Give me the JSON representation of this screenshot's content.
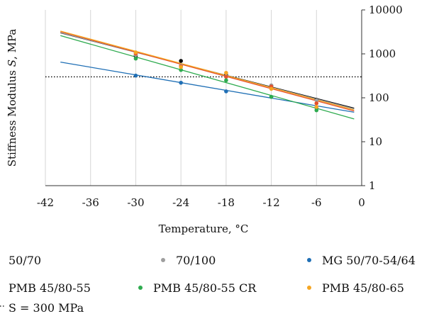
{
  "chart_data": {
    "type": "scatter",
    "y_scale": "log",
    "xlabel": "Temperature, °C",
    "ylabel_main": "Stiffness Modulus ",
    "ylabel_symbol": "S",
    "ylabel_unit": ", MPa",
    "xlim": [
      -42,
      0
    ],
    "ylim": [
      1,
      10000
    ],
    "x_ticks": [
      "-42",
      "-36",
      "-30",
      "-24",
      "-18",
      "-12",
      "-6",
      "0"
    ],
    "x_tick_values": [
      -42,
      -36,
      -30,
      -24,
      -18,
      -12,
      -6,
      0
    ],
    "y_ticks": [
      "1",
      "10",
      "100",
      "1000",
      "10000"
    ],
    "y_tick_values": [
      1,
      10,
      100,
      1000,
      10000
    ],
    "grid": "vertical",
    "legend_position": "bottom",
    "series": [
      {
        "name": "50/70",
        "color": "#000000",
        "x": [
          -30,
          -24,
          -18,
          -12,
          -6
        ],
        "y": [
          900,
          690,
          330,
          190,
          90
        ],
        "fit_y": [
          3000,
          58
        ]
      },
      {
        "name": "70/100",
        "color": "#9e9e9e",
        "x": [
          -30,
          -24,
          -18,
          -12,
          -6
        ],
        "y": [
          950,
          540,
          310,
          190,
          88
        ],
        "fit_y": [
          3050,
          56
        ]
      },
      {
        "name": "MG 50/70-54/64",
        "color": "#1f6fb5",
        "x": [
          -30,
          -24,
          -18,
          -12,
          -6
        ],
        "y": [
          320,
          220,
          140,
          105,
          60
        ],
        "fit_y": [
          650,
          47
        ]
      },
      {
        "name": "PMB 45/80-55",
        "color": "#e4502e",
        "x": [
          -30,
          -24,
          -18,
          -12,
          -6
        ],
        "y": [
          1020,
          520,
          300,
          180,
          75
        ],
        "fit_y": [
          3200,
          50
        ]
      },
      {
        "name": "PMB 45/80-55 CR",
        "color": "#2eab4f",
        "x": [
          -30,
          -24,
          -18,
          -12,
          -6
        ],
        "y": [
          780,
          430,
          250,
          105,
          52
        ],
        "fit_y": [
          2600,
          33
        ]
      },
      {
        "name": "PMB 45/80-65",
        "color": "#f5a623",
        "x": [
          -30,
          -24,
          -18,
          -12,
          -6
        ],
        "y": [
          1080,
          500,
          370,
          160,
          62
        ],
        "fit_y": [
          3300,
          53
        ]
      }
    ],
    "reference_line": {
      "label": "S = 300 MPa",
      "y": 300,
      "color": "#000000"
    }
  }
}
